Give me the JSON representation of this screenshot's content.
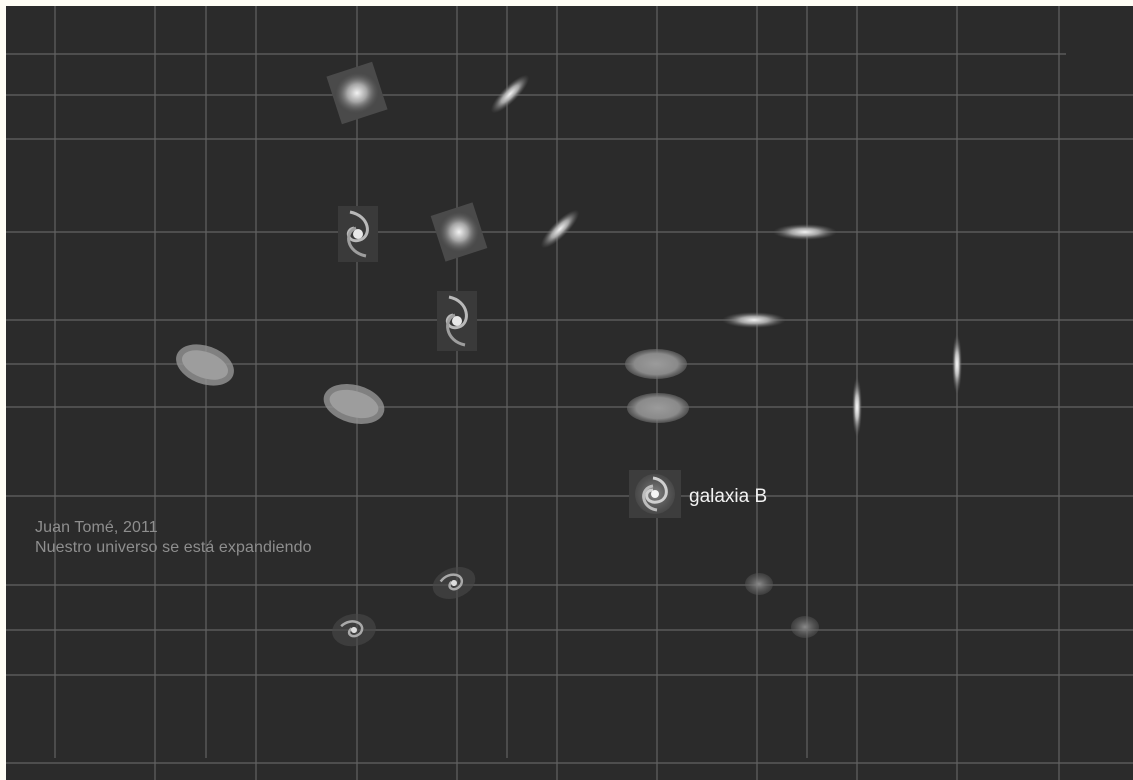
{
  "credit": {
    "author_line": "Juan Tomé, 2011",
    "caption_line": "Nuestro universo se está expandiendo"
  },
  "galaxy_label": "galaxia B",
  "colors": {
    "background": "#2b2b2b",
    "grid": "#7a7a7a",
    "caption": "#8e8e8e",
    "label": "#f2f2f2"
  }
}
